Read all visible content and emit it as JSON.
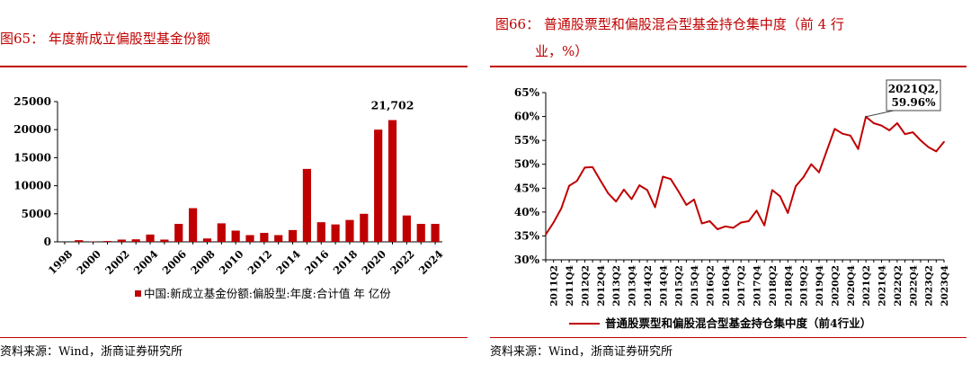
{
  "left": {
    "figure_title": "图65：  年度新成立偏股型基金份额",
    "source": "资料来源：Wind，浙商证券研究所"
  },
  "right": {
    "figure_title_line1": "图66：  普通股票型和偏股混合型基金持仓集中度（前 4 行",
    "figure_title_line2": "业，%）",
    "source": "资料来源：Wind，浙商证券研究所"
  },
  "chart_data": [
    {
      "type": "bar",
      "title": "",
      "xlabel": "",
      "ylabel": "",
      "ylim": [
        0,
        25000
      ],
      "yticks": [
        "0",
        "5000",
        "10000",
        "15000",
        "20000",
        "25000"
      ],
      "categories": [
        "1998",
        "1999",
        "2000",
        "2001",
        "2002",
        "2003",
        "2004",
        "2005",
        "2006",
        "2007",
        "2008",
        "2009",
        "2010",
        "2011",
        "2012",
        "2013",
        "2014",
        "2015",
        "2016",
        "2017",
        "2018",
        "2019",
        "2020",
        "2021",
        "2022",
        "2023",
        "2024"
      ],
      "xtick_labels": [
        "1998",
        "2000",
        "2002",
        "2004",
        "2006",
        "2008",
        "2010",
        "2012",
        "2014",
        "2016",
        "2018",
        "2020",
        "2022",
        "2024"
      ],
      "series": [
        {
          "name": "中国:新成立基金份额:偏股型:年度:合计值 年 亿份",
          "color": "#c00000",
          "values": [
            0,
            300,
            50,
            150,
            400,
            450,
            1300,
            400,
            3200,
            6000,
            600,
            3300,
            2000,
            1200,
            1600,
            1200,
            2100,
            13000,
            3500,
            3100,
            3900,
            5000,
            20000,
            21702,
            4700,
            3200,
            3200
          ]
        }
      ],
      "annotation": {
        "label": "21,702",
        "category": "2021"
      },
      "legend_position": "bottom",
      "grid": false
    },
    {
      "type": "line",
      "title": "",
      "xlabel": "",
      "ylabel": "",
      "ylim": [
        30,
        65
      ],
      "yticks": [
        "30%",
        "35%",
        "40%",
        "45%",
        "50%",
        "55%",
        "60%",
        "65%"
      ],
      "x": [
        "2011Q1",
        "2011Q2",
        "2011Q3",
        "2011Q4",
        "2012Q1",
        "2012Q2",
        "2012Q3",
        "2012Q4",
        "2013Q1",
        "2013Q2",
        "2013Q3",
        "2013Q4",
        "2014Q1",
        "2014Q2",
        "2014Q3",
        "2014Q4",
        "2015Q1",
        "2015Q2",
        "2015Q3",
        "2015Q4",
        "2016Q1",
        "2016Q2",
        "2016Q3",
        "2016Q4",
        "2017Q1",
        "2017Q2",
        "2017Q3",
        "2017Q4",
        "2018Q1",
        "2018Q2",
        "2018Q3",
        "2018Q4",
        "2019Q1",
        "2019Q2",
        "2019Q3",
        "2019Q4",
        "2020Q1",
        "2020Q2",
        "2020Q3",
        "2020Q4",
        "2021Q1",
        "2021Q2",
        "2021Q3",
        "2021Q4",
        "2022Q1",
        "2022Q2",
        "2022Q3",
        "2022Q4",
        "2023Q1",
        "2023Q2",
        "2023Q3",
        "2023Q4"
      ],
      "xtick_labels": [
        "2011Q2",
        "2011Q4",
        "2012Q2",
        "2012Q4",
        "2013Q2",
        "2013Q4",
        "2014Q2",
        "2014Q4",
        "2015Q2",
        "2015Q4",
        "2016Q2",
        "2016Q4",
        "2017Q2",
        "2017Q4",
        "2018Q2",
        "2018Q4",
        "2019Q2",
        "2019Q4",
        "2020Q2",
        "2020Q4",
        "2021Q2",
        "2021Q4",
        "2022Q2",
        "2022Q4",
        "2023Q2",
        "2023Q4"
      ],
      "series": [
        {
          "name": "普通股票型和偏股混合型基金持仓集中度（前4行业）",
          "color": "#c00000",
          "values": [
            35.3,
            37.8,
            40.8,
            45.5,
            46.5,
            49.3,
            49.4,
            46.6,
            43.9,
            42.2,
            44.7,
            42.7,
            45.6,
            44.6,
            41.0,
            47.4,
            46.9,
            44.3,
            41.5,
            42.6,
            37.6,
            38.1,
            36.4,
            37.0,
            36.7,
            37.8,
            38.1,
            40.3,
            37.2,
            44.6,
            43.3,
            39.8,
            45.4,
            47.3,
            50.0,
            48.3,
            52.9,
            57.4,
            56.4,
            56.0,
            53.2,
            59.96,
            58.6,
            58.1,
            57.1,
            58.6,
            56.3,
            56.7,
            55.0,
            53.6,
            52.7,
            54.7
          ]
        }
      ],
      "annotation": {
        "label_line1": "2021Q2,",
        "label_line2": "59.96%",
        "x": "2021Q2"
      },
      "legend_position": "bottom",
      "grid": false
    }
  ]
}
